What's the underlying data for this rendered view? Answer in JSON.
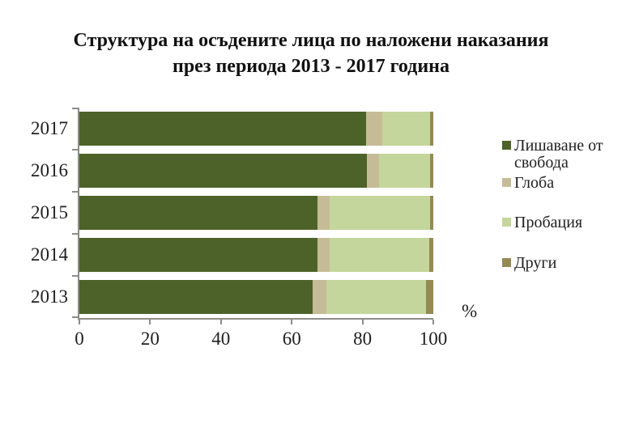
{
  "chart_data": {
    "type": "bar",
    "orientation": "horizontal",
    "stacked": true,
    "title": "Структура на осъдените лица по наложени наказания през периода 2013 - 2017 година",
    "title_lines": [
      "Структура на осъдените лица по наложени наказания",
      "през периода 2013 - 2017 година"
    ],
    "categories": [
      "2017",
      "2016",
      "2015",
      "2014",
      "2013"
    ],
    "series": [
      {
        "name": "Лишаване от свобода",
        "color": "#4D6228",
        "values": [
          81.0,
          81.2,
          67.3,
          67.3,
          66.0
        ]
      },
      {
        "name": "Глоба",
        "color": "#C5BC97",
        "values": [
          4.6,
          3.4,
          3.4,
          3.4,
          3.8
        ]
      },
      {
        "name": "Пробация",
        "color": "#C4D69B",
        "values": [
          13.4,
          14.4,
          28.3,
          28.1,
          28.2
        ]
      },
      {
        "name": "Други",
        "color": "#948A54",
        "values": [
          1.0,
          1.0,
          1.0,
          1.2,
          2.0
        ]
      }
    ],
    "x_ticks": [
      0,
      20,
      40,
      60,
      80,
      100
    ],
    "xlim": [
      0,
      100
    ],
    "x_unit_label": "%",
    "legend_position": "right",
    "grid": false,
    "axis_color": "#8C8C8C",
    "background_color": "#FFFFFF"
  }
}
